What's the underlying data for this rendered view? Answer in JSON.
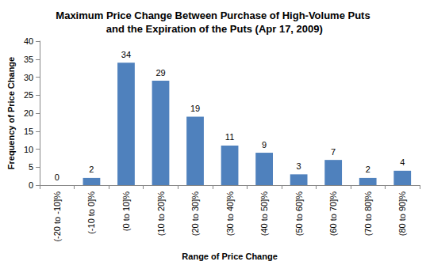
{
  "chart_data": {
    "type": "bar",
    "title": "Maximum Price Change Between Purchase of High-Volume Puts and the Expiration of the Puts (Apr 17, 2009)",
    "x_label": "Range of Price Change",
    "y_label": "Frequency of Price Change",
    "categories": [
      "(-20 to -10]%",
      "(-10 to 0]%",
      "(0 to 10]%",
      "(10 to 20]%",
      "(20 to 30]%",
      "(30 to 40]%",
      "(40 to 50]%",
      "(50 to 60]%",
      "(60 to 70]%",
      "(70 to 80]%",
      "(80 to 90]%"
    ],
    "values": [
      0,
      2,
      34,
      29,
      19,
      11,
      9,
      3,
      7,
      2,
      4
    ],
    "color": "#4f81bd",
    "ylim": [
      0,
      40
    ],
    "yticks": [
      0,
      5,
      10,
      15,
      20,
      25,
      30,
      35,
      40
    ],
    "grid": false,
    "data_labels": true
  }
}
